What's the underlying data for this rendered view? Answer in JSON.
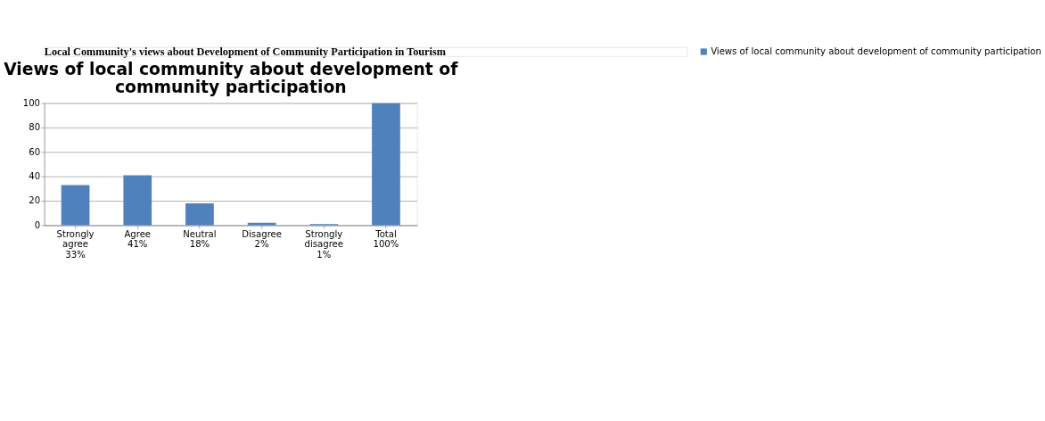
{
  "chart_data": {
    "type": "bar",
    "title": [
      "Views of local community about development of",
      "community participation"
    ],
    "annotations": [
      "Local Community's views about Development of Community Participation in Tourism"
    ],
    "categories": [
      "Strongly\nagree\n33%",
      "Agree\n41%",
      "Neutral\n18%",
      "Disagree\n2%",
      "Strongly\ndisagree\n1%",
      "Total\n100%"
    ],
    "series": [
      {
        "name": "Views of local community about development of community participation",
        "color": "#4f81bd",
        "values": [
          33,
          41,
          18,
          2,
          1,
          100
        ]
      }
    ],
    "ylim": [
      0,
      100
    ],
    "yticks": [
      0,
      20,
      40,
      60,
      80,
      100
    ],
    "grid": "y",
    "legend": "right"
  }
}
